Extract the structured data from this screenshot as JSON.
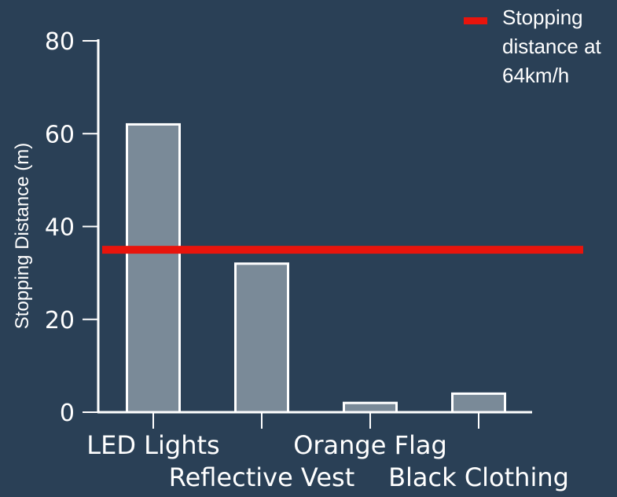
{
  "colors": {
    "background": "#2a4056",
    "bar_fill": "#7a8a98",
    "bar_stroke": "#ffffff",
    "axis": "#ffffff",
    "reference_line": "#e8140c"
  },
  "chart_data": {
    "type": "bar",
    "categories": [
      "LED Lights",
      "Reflective Vest",
      "Orange Flag",
      "Black Clothing"
    ],
    "values": [
      62,
      32,
      2,
      4
    ],
    "xlabel": "",
    "ylabel": "Stopping Distance (m)",
    "ylim": [
      0,
      80
    ],
    "yticks": [
      0,
      20,
      40,
      60,
      80
    ],
    "reference_line": {
      "value": 35,
      "label": "Stopping distance at 64km/h",
      "label_lines": [
        "Stopping",
        "distance at",
        "64km/h"
      ]
    },
    "grid": false,
    "legend_position": "top-right"
  }
}
